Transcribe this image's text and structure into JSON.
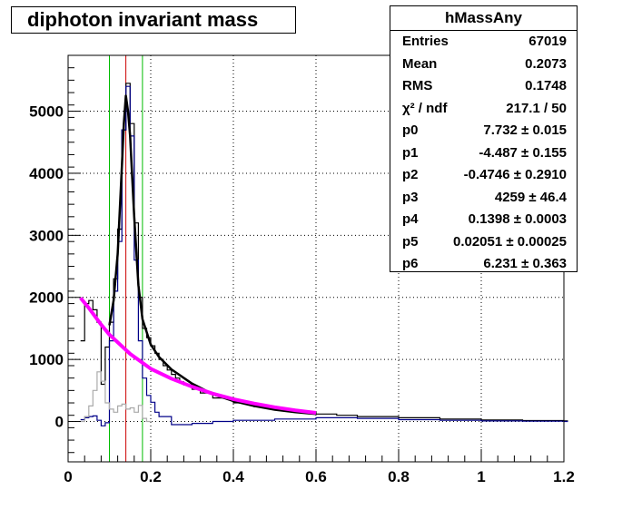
{
  "title": "diphoton invariant mass",
  "stats": {
    "name": "hMassAny",
    "rows": [
      {
        "key": "Entries",
        "value": "67019"
      },
      {
        "key": "Mean",
        "value": "0.2073"
      },
      {
        "key": "RMS",
        "value": "0.1748"
      },
      {
        "key": "χ² / ndf",
        "value": "217.1 / 50"
      },
      {
        "key": "p0",
        "value": "7.732 ± 0.015"
      },
      {
        "key": "p1",
        "value": "-4.487 ± 0.155"
      },
      {
        "key": "p2",
        "value": "-0.4746 ± 0.2910"
      },
      {
        "key": "p3",
        "value": "4259 ± 46.4"
      },
      {
        "key": "p4",
        "value": "0.1398 ± 0.0003"
      },
      {
        "key": "p5",
        "value": "0.02051 ± 0.00025"
      },
      {
        "key": "p6",
        "value": "6.231 ± 0.363"
      }
    ]
  },
  "chart_data": {
    "type": "line",
    "title": "diphoton invariant mass",
    "xlabel": "",
    "ylabel": "",
    "xlim": [
      0,
      1.2
    ],
    "ylim": [
      -650,
      5900
    ],
    "x_ticks": [
      "0",
      "0.2",
      "0.4",
      "0.6",
      "0.8",
      "1",
      "1.2"
    ],
    "y_ticks": [
      "0",
      "1000",
      "2000",
      "3000",
      "4000",
      "5000"
    ],
    "grid": true,
    "legend": "top-right statistics box",
    "vertical_lines": [
      {
        "x": 0.1,
        "color": "#00bb00"
      },
      {
        "x": 0.1398,
        "color": "#cc0000"
      },
      {
        "x": 0.18,
        "color": "#00bb00"
      }
    ],
    "series": [
      {
        "color": "#000000",
        "style": "step",
        "x": [
          0.03,
          0.04,
          0.05,
          0.06,
          0.07,
          0.08,
          0.09,
          0.1,
          0.11,
          0.12,
          0.13,
          0.14,
          0.15,
          0.16,
          0.17,
          0.18,
          0.19,
          0.2,
          0.21,
          0.22,
          0.23,
          0.24,
          0.25,
          0.26,
          0.27,
          0.28,
          0.3,
          0.32,
          0.35,
          0.4,
          0.45,
          0.5,
          0.55,
          0.6,
          0.65,
          0.7,
          0.8,
          0.9,
          1.0,
          1.1,
          1.2
        ],
        "y": [
          1300,
          1900,
          1950,
          1800,
          1600,
          600,
          1200,
          1600,
          2300,
          3100,
          4700,
          5450,
          4800,
          3200,
          2000,
          1500,
          1350,
          1220,
          1100,
          1000,
          900,
          830,
          760,
          700,
          640,
          590,
          520,
          460,
          380,
          300,
          240,
          190,
          155,
          120,
          100,
          80,
          60,
          40,
          25,
          15,
          10
        ]
      },
      {
        "color": "#000088",
        "style": "step",
        "x": [
          0.03,
          0.04,
          0.05,
          0.06,
          0.07,
          0.08,
          0.09,
          0.1,
          0.11,
          0.12,
          0.13,
          0.14,
          0.15,
          0.16,
          0.17,
          0.18,
          0.19,
          0.2,
          0.21,
          0.22,
          0.25,
          0.3,
          0.35,
          0.4,
          0.5,
          0.6,
          0.7,
          0.8,
          0.9,
          1.0,
          1.1,
          1.2
        ],
        "y": [
          30,
          60,
          80,
          90,
          20,
          -70,
          -20,
          1300,
          2100,
          2900,
          4700,
          5400,
          4600,
          2600,
          1300,
          700,
          420,
          310,
          150,
          80,
          -50,
          -30,
          0,
          20,
          40,
          60,
          50,
          30,
          20,
          10,
          5,
          0
        ]
      },
      {
        "color": "#aaaaaa",
        "style": "step",
        "x": [
          0.03,
          0.04,
          0.05,
          0.06,
          0.07,
          0.08,
          0.09,
          0.1,
          0.11,
          0.12,
          0.13,
          0.14,
          0.15,
          0.16,
          0.17,
          0.18,
          0.19
        ],
        "y": [
          0,
          80,
          250,
          500,
          800,
          650,
          300,
          200,
          150,
          250,
          280,
          200,
          220,
          150,
          260,
          50,
          0
        ]
      },
      {
        "color": "#000000",
        "style": "fit",
        "x": [
          0.1,
          0.11,
          0.12,
          0.13,
          0.135,
          0.1398,
          0.145,
          0.15,
          0.16,
          0.17,
          0.18,
          0.2,
          0.22,
          0.25,
          0.3,
          0.35,
          0.4,
          0.45,
          0.5,
          0.55,
          0.6
        ],
        "y": [
          1550,
          1950,
          2700,
          4100,
          4800,
          5250,
          5000,
          4600,
          3300,
          2200,
          1650,
          1240,
          1040,
          840,
          610,
          440,
          330,
          250,
          190,
          150,
          120
        ]
      },
      {
        "color": "#ff00ff",
        "style": "fit",
        "x": [
          0.03,
          0.05,
          0.08,
          0.1,
          0.15,
          0.2,
          0.25,
          0.3,
          0.35,
          0.4,
          0.45,
          0.5,
          0.55,
          0.6
        ],
        "y": [
          1990,
          1830,
          1560,
          1400,
          1090,
          850,
          690,
          560,
          450,
          360,
          290,
          230,
          180,
          140
        ]
      }
    ]
  }
}
